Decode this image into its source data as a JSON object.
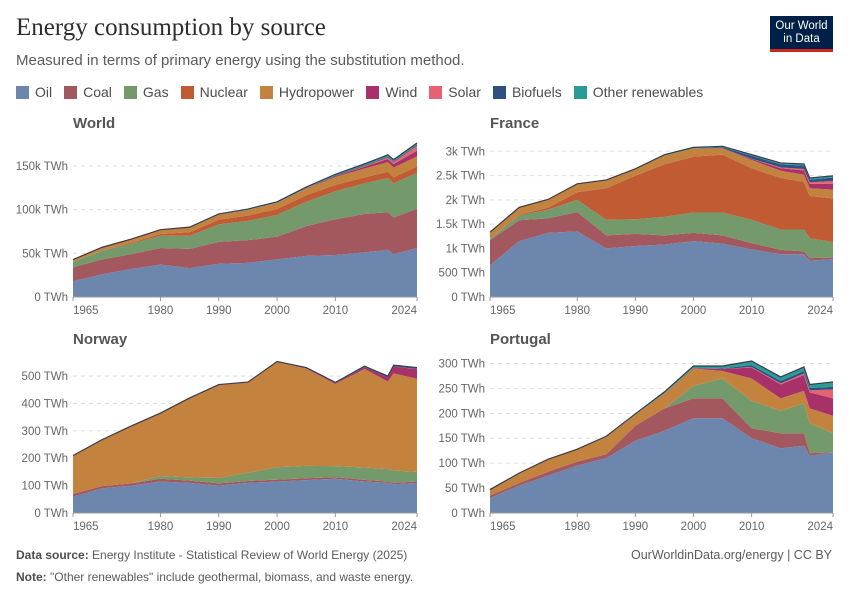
{
  "header": {
    "title": "Energy consumption by source",
    "subtitle": "Measured in terms of primary energy using the substitution method.",
    "logo_text": "Our World in Data"
  },
  "footer": {
    "source_label": "Data source:",
    "source_text": "Energy Institute - Statistical Review of World Energy (2025)",
    "note_label": "Note:",
    "note_text": "\"Other renewables\" include geothermal, biomass, and waste energy.",
    "url": "OurWorldinData.org/energy | CC BY"
  },
  "chart_data": {
    "type": "area",
    "stacked": true,
    "unit": "TWh",
    "x_tick_labels": [
      "1965",
      "1980",
      "1990",
      "2000",
      "2010",
      "2024"
    ],
    "x": [
      1965,
      1970,
      1975,
      1980,
      1985,
      1990,
      1995,
      2000,
      2005,
      2010,
      2015,
      2019,
      2020,
      2024
    ],
    "legend": {
      "placement": "top",
      "items": [
        {
          "name": "Oil",
          "color": "#6d86ad"
        },
        {
          "name": "Coal",
          "color": "#a3575f"
        },
        {
          "name": "Gas",
          "color": "#74996a"
        },
        {
          "name": "Nuclear",
          "color": "#c15b34"
        },
        {
          "name": "Hydropower",
          "color": "#c4823f"
        },
        {
          "name": "Wind",
          "color": "#a8316a"
        },
        {
          "name": "Solar",
          "color": "#e46272"
        },
        {
          "name": "Biofuels",
          "color": "#2f5181"
        },
        {
          "name": "Other renewables",
          "color": "#2a9c96"
        }
      ]
    },
    "grid": "horizontal dashed",
    "panels": [
      {
        "title": "World",
        "yticks": [
          "0 TWh",
          "50k TWh",
          "100k TWh",
          "150k TWh"
        ],
        "ytick_values": [
          0,
          50000,
          100000,
          150000
        ],
        "ylim": [
          0,
          175000
        ],
        "series": {
          "Oil": [
            18000,
            26000,
            32000,
            37000,
            33000,
            38000,
            39000,
            43000,
            47000,
            48000,
            51000,
            54000,
            49000,
            56000
          ],
          "Coal": [
            16000,
            17000,
            17000,
            19000,
            22000,
            25000,
            26000,
            26000,
            34000,
            41000,
            44000,
            43000,
            42000,
            45000
          ],
          "Gas": [
            6000,
            10000,
            12000,
            14000,
            15000,
            20000,
            22000,
            25000,
            28000,
            32000,
            35000,
            39000,
            39000,
            41000
          ],
          "Nuclear": [
            100,
            400,
            1000,
            2000,
            4000,
            5500,
            6200,
            6700,
            7400,
            7300,
            6800,
            7200,
            6800,
            7300
          ],
          "Hydropower": [
            2500,
            3300,
            4000,
            4700,
            5300,
            5600,
            6400,
            7000,
            7700,
            9000,
            10200,
            11000,
            11200,
            11500
          ],
          "Wind": [
            0,
            0,
            0,
            0,
            0,
            0,
            0,
            80,
            270,
            900,
            2100,
            3600,
            4000,
            6600
          ],
          "Solar": [
            0,
            0,
            0,
            0,
            0,
            0,
            0,
            0,
            10,
            100,
            650,
            1800,
            2200,
            5500
          ],
          "Biofuels": [
            0,
            0,
            0,
            0,
            100,
            100,
            100,
            100,
            200,
            600,
            800,
            1000,
            900,
            1100
          ],
          "Other renewables": [
            200,
            200,
            300,
            300,
            500,
            800,
            900,
            1000,
            1200,
            1500,
            1800,
            2000,
            2000,
            2200
          ]
        }
      },
      {
        "title": "France",
        "yticks": [
          "0 TWh",
          "500 TWh",
          "1k TWh",
          "1.5k TWh",
          "2k TWh",
          "2.5k TWh",
          "3k TWh"
        ],
        "ytick_values": [
          0,
          500,
          1000,
          1500,
          2000,
          2500,
          3000
        ],
        "ylim": [
          0,
          3150
        ],
        "series": {
          "Oil": [
            650,
            1150,
            1320,
            1350,
            1000,
            1050,
            1080,
            1150,
            1100,
            980,
            880,
            880,
            750,
            780
          ],
          "Coal": [
            520,
            430,
            300,
            400,
            270,
            250,
            190,
            170,
            170,
            130,
            90,
            60,
            50,
            30
          ],
          "Gas": [
            30,
            100,
            180,
            250,
            320,
            300,
            380,
            420,
            470,
            480,
            420,
            450,
            410,
            320
          ],
          "Nuclear": [
            5,
            15,
            40,
            160,
            650,
            900,
            1080,
            1150,
            1190,
            1060,
            1060,
            980,
            870,
            900
          ],
          "Hydropower": [
            130,
            150,
            170,
            170,
            170,
            140,
            180,
            170,
            130,
            170,
            150,
            150,
            160,
            180
          ],
          "Wind": [
            0,
            0,
            0,
            0,
            0,
            0,
            0,
            0,
            2,
            25,
            50,
            85,
            90,
            120
          ],
          "Solar": [
            0,
            0,
            0,
            0,
            0,
            0,
            0,
            0,
            0,
            2,
            20,
            30,
            30,
            60
          ],
          "Biofuels": [
            0,
            0,
            0,
            0,
            0,
            0,
            0,
            0,
            20,
            60,
            60,
            70,
            55,
            70
          ],
          "Other renewables": [
            0,
            0,
            0,
            0,
            0,
            0,
            20,
            20,
            20,
            25,
            30,
            35,
            35,
            35
          ]
        }
      },
      {
        "title": "Norway",
        "yticks": [
          "0 TWh",
          "100 TWh",
          "200 TWh",
          "300 TWh",
          "400 TWh",
          "500 TWh"
        ],
        "ytick_values": [
          0,
          100,
          200,
          300,
          400,
          500
        ],
        "ylim": [
          0,
          555
        ],
        "series": {
          "Oil": [
            60,
            90,
            100,
            115,
            110,
            100,
            110,
            115,
            120,
            125,
            115,
            110,
            105,
            110
          ],
          "Coal": [
            10,
            8,
            8,
            10,
            8,
            8,
            7,
            7,
            7,
            6,
            6,
            5,
            5,
            5
          ],
          "Gas": [
            0,
            0,
            0,
            10,
            12,
            20,
            30,
            45,
            45,
            40,
            45,
            45,
            45,
            35
          ],
          "Nuclear": [
            0,
            0,
            0,
            0,
            0,
            0,
            0,
            0,
            0,
            0,
            0,
            0,
            0,
            0
          ],
          "Hydropower": [
            140,
            170,
            210,
            230,
            290,
            340,
            330,
            385,
            355,
            300,
            360,
            320,
            355,
            340
          ],
          "Wind": [
            0,
            0,
            0,
            0,
            0,
            0,
            0,
            0,
            2,
            3,
            6,
            15,
            25,
            35
          ],
          "Solar": [
            0,
            0,
            0,
            0,
            0,
            0,
            0,
            0,
            0,
            0,
            0,
            0,
            0,
            1
          ],
          "Biofuels": [
            0,
            0,
            0,
            0,
            0,
            0,
            0,
            0,
            0,
            1,
            2,
            3,
            3,
            3
          ],
          "Other renewables": [
            0,
            0,
            0,
            0,
            0,
            1,
            1,
            1,
            2,
            2,
            2,
            2,
            2,
            2
          ]
        }
      },
      {
        "title": "Portugal",
        "yticks": [
          "0 TWh",
          "50 TWh",
          "100 TWh",
          "150 TWh",
          "200 TWh",
          "250 TWh",
          "300 TWh"
        ],
        "ytick_values": [
          0,
          50,
          100,
          150,
          200,
          250,
          300
        ],
        "ylim": [
          0,
          305
        ],
        "series": {
          "Oil": [
            30,
            55,
            75,
            95,
            110,
            145,
            165,
            190,
            190,
            150,
            130,
            135,
            115,
            122
          ],
          "Coal": [
            5,
            5,
            8,
            8,
            8,
            30,
            45,
            40,
            40,
            20,
            30,
            25,
            5,
            0
          ],
          "Gas": [
            0,
            0,
            0,
            0,
            0,
            0,
            0,
            25,
            40,
            55,
            45,
            60,
            60,
            38
          ],
          "Nuclear": [
            0,
            0,
            0,
            0,
            0,
            0,
            0,
            0,
            0,
            0,
            0,
            0,
            0,
            0
          ],
          "Hydropower": [
            12,
            20,
            25,
            25,
            35,
            22,
            30,
            35,
            15,
            45,
            25,
            25,
            30,
            35
          ],
          "Wind": [
            0,
            0,
            0,
            0,
            0,
            0,
            0,
            1,
            4,
            22,
            28,
            32,
            32,
            35
          ],
          "Solar": [
            0,
            0,
            0,
            0,
            0,
            0,
            0,
            0,
            0,
            1,
            2,
            3,
            4,
            18
          ],
          "Biofuels": [
            0,
            0,
            0,
            0,
            0,
            0,
            0,
            0,
            1,
            4,
            5,
            5,
            5,
            5
          ],
          "Other renewables": [
            0,
            0,
            0,
            0,
            1,
            2,
            3,
            4,
            5,
            8,
            8,
            8,
            7,
            10
          ]
        }
      }
    ]
  }
}
